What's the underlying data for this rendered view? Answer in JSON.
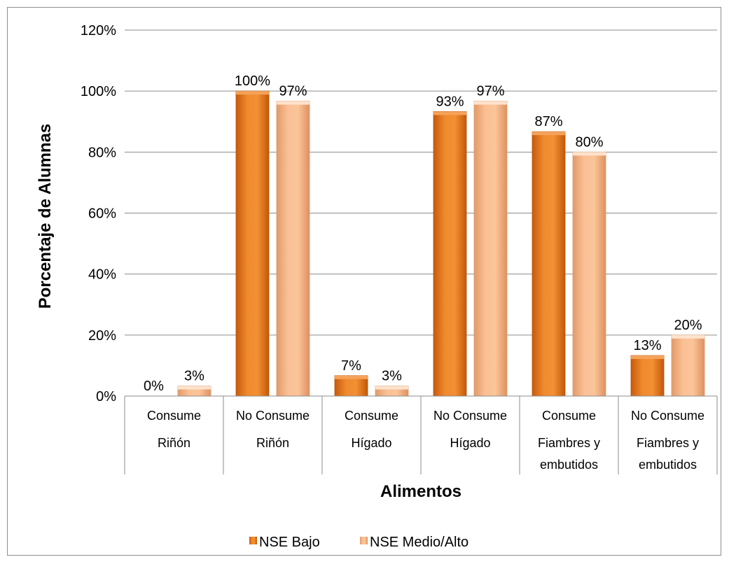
{
  "chart_data": {
    "type": "bar",
    "xlabel": "Alimentos",
    "ylabel": "Porcentaje de Alumnas",
    "ylim": [
      0,
      120
    ],
    "yticks": [
      "0%",
      "20%",
      "40%",
      "60%",
      "80%",
      "100%",
      "120%"
    ],
    "grid": true,
    "legend_position": "bottom",
    "categories": [
      [
        "Consume",
        "Riñón"
      ],
      [
        "No Consume",
        "Riñón"
      ],
      [
        "Consume",
        "Hígado"
      ],
      [
        "No Consume",
        "Hígado"
      ],
      [
        "Consume",
        "Fiambres y",
        "embutidos"
      ],
      [
        "No Consume",
        "Fiambres y",
        "embutidos"
      ]
    ],
    "series": [
      {
        "name": "NSE Bajo",
        "color": "#e8751a",
        "values": [
          0,
          100,
          6.7,
          93.3,
          86.7,
          13.3
        ],
        "labels": [
          "0%",
          "100%",
          "7%",
          "93%",
          "87%",
          "13%"
        ]
      },
      {
        "name": "NSE Medio/Alto",
        "color": "#f5b07f",
        "values": [
          3.3,
          96.7,
          3.3,
          96.7,
          80,
          20
        ],
        "labels": [
          "3%",
          "97%",
          "3%",
          "97%",
          "80%",
          "20%"
        ]
      }
    ]
  }
}
